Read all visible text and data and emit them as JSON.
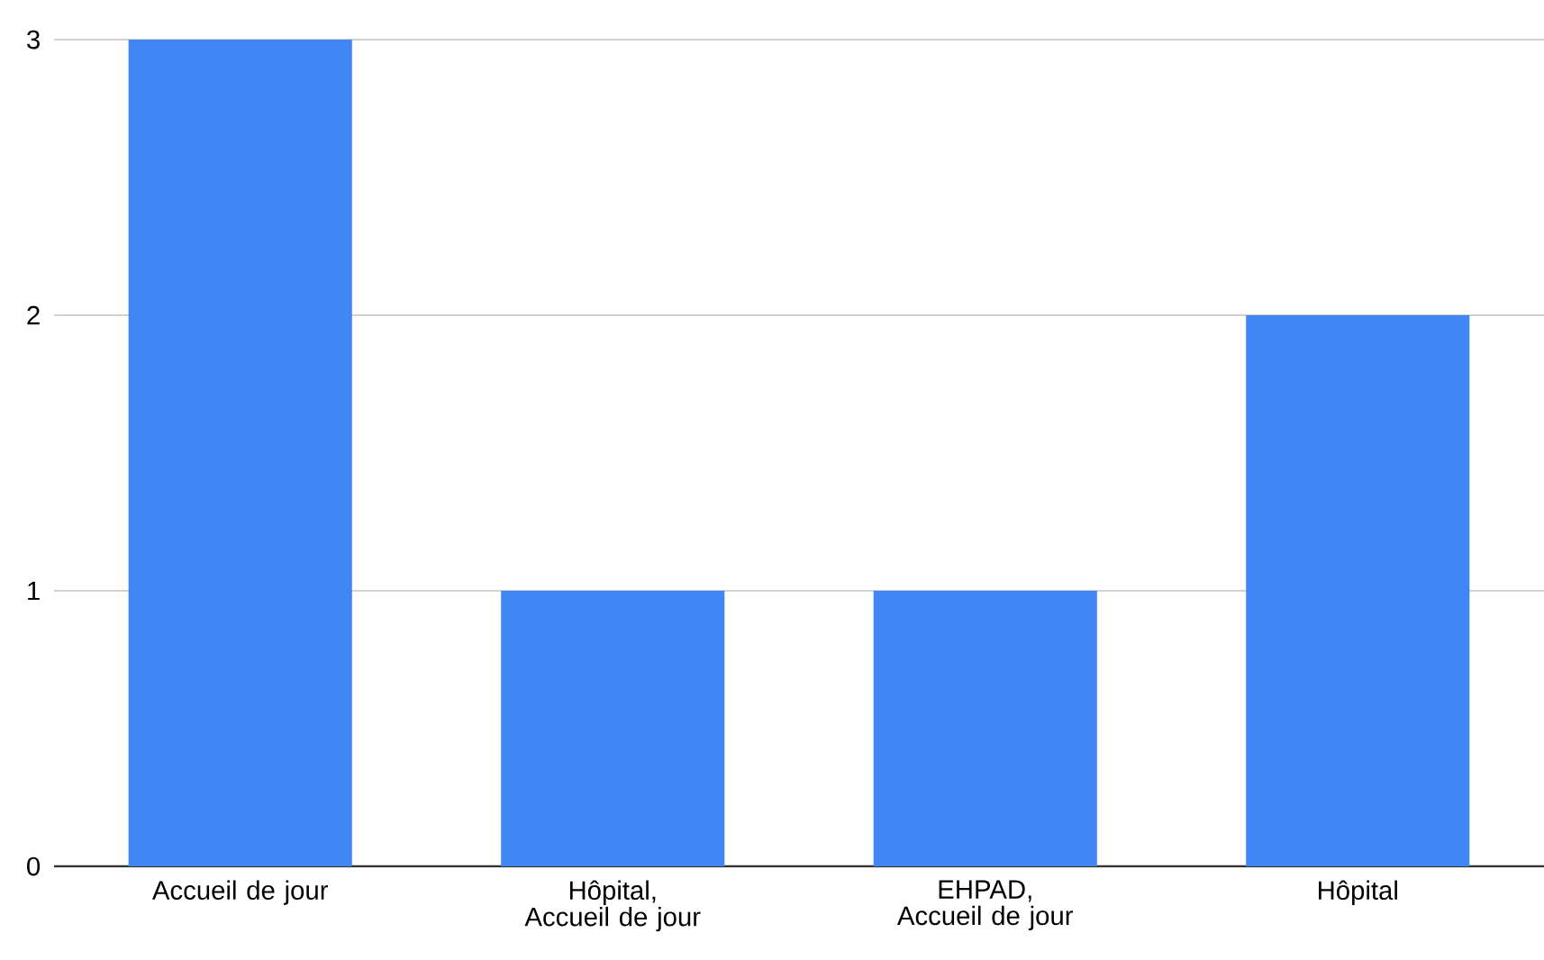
{
  "chart_data": {
    "type": "bar",
    "categories": [
      "Accueil de jour",
      "Hôpital, Accueil de jour",
      "EHPAD, Accueil de jour",
      "Hôpital"
    ],
    "values": [
      3,
      1,
      1,
      2
    ],
    "color": "#4285f4",
    "ylim": [
      0,
      3
    ],
    "yticks": [
      0,
      1,
      2,
      3
    ],
    "grid": "y"
  }
}
